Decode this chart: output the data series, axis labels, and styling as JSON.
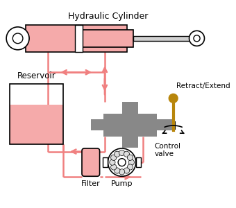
{
  "bg_color": "#ffffff",
  "pink": "#F08080",
  "pink_fill": "#F5AAAA",
  "gray": "#888888",
  "gold": "#B8860B",
  "title": "Hydraulic Cylinder",
  "label_reservoir": "Reservoir",
  "label_filter": "Filter",
  "label_pump": "Pump",
  "label_retract": "Retract/Extend",
  "label_control": "Control\nvalve",
  "figw": 3.4,
  "figh": 3.0,
  "dpi": 100
}
